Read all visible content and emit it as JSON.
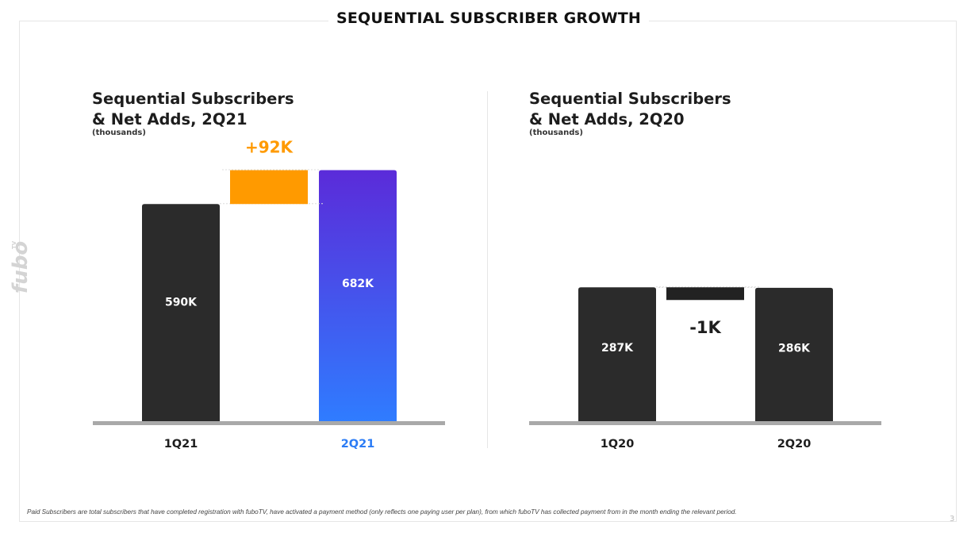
{
  "page": {
    "title": "SEQUENTIAL SUBSCRIBER GROWTH",
    "footnote": "Paid Subscribers are total subscribers that have completed registration with fuboTV, have activated a payment method (only reflects one paying user per plan), from which fuboTV has collected payment from in the month ending the relevant period.",
    "page_number": "3",
    "logo_text": "fubo",
    "logo_superscript": "TV"
  },
  "panels": [
    {
      "title_line1": "Sequential Subscribers",
      "title_line2": "& Net Adds, 2Q21",
      "subtitle": "(thousands)"
    },
    {
      "title_line1": "Sequential Subscribers",
      "title_line2": "& Net Adds, 2Q20",
      "subtitle": "(thousands)"
    }
  ],
  "colors": {
    "dark_bar": "#2b2b2b",
    "gradient_top": "#5b2bd9",
    "gradient_bottom": "#2f7cff",
    "net_add_positive": "#ff9a00",
    "net_add_negative": "#222222",
    "axis": "#a9a9a9",
    "highlight_label": "#2c7cf5"
  },
  "chart_data": [
    {
      "type": "bar",
      "title": "Sequential Subscribers & Net Adds, 2Q21",
      "unit": "thousands",
      "categories": [
        "1Q21",
        "2Q21"
      ],
      "values": [
        590,
        682
      ],
      "value_labels": [
        "590K",
        "682K"
      ],
      "net_add": {
        "value": 92,
        "label": "+92K"
      },
      "highlight_index": 1
    },
    {
      "type": "bar",
      "title": "Sequential Subscribers & Net Adds, 2Q20",
      "unit": "thousands",
      "categories": [
        "1Q20",
        "2Q20"
      ],
      "values": [
        287,
        286
      ],
      "value_labels": [
        "287K",
        "286K"
      ],
      "net_add": {
        "value": -1,
        "label": "-1K"
      },
      "highlight_index": -1
    }
  ]
}
